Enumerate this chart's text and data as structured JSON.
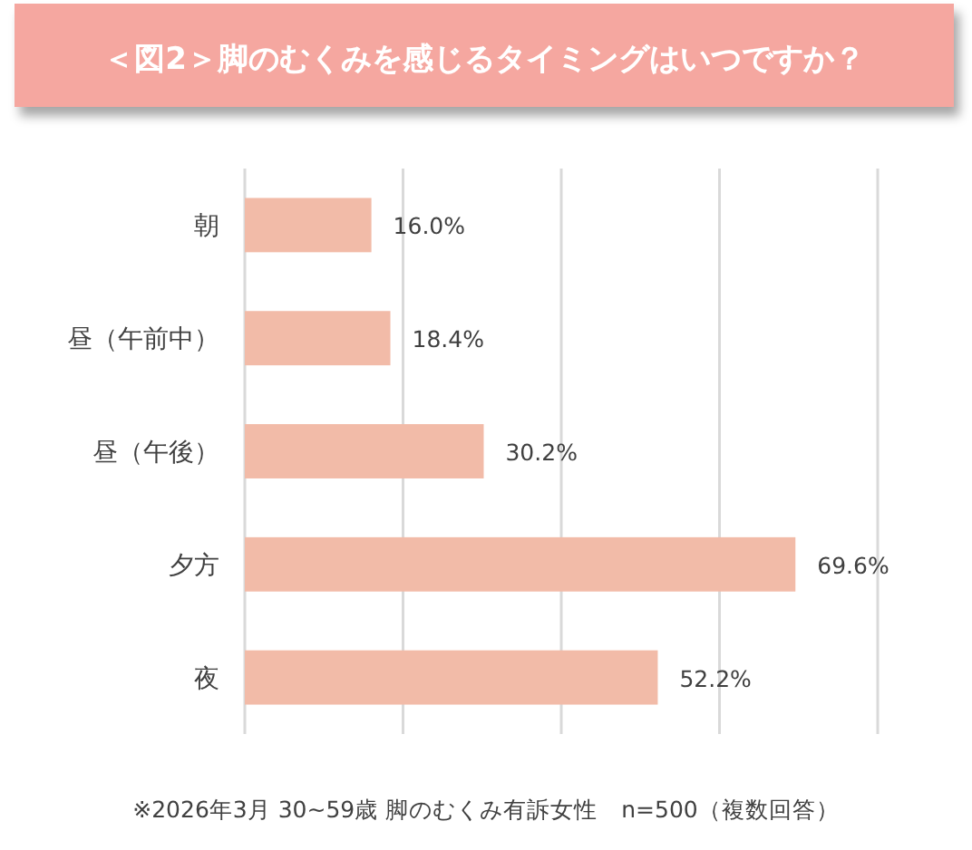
{
  "chart_data": {
    "type": "bar",
    "orientation": "horizontal",
    "title": "＜図2＞脚のむくみを感じるタイミングはいつですか？",
    "categories": [
      "朝",
      "昼（午前中）",
      "昼（午後）",
      "夕方",
      "夜"
    ],
    "values": [
      16.0,
      18.4,
      30.2,
      69.6,
      52.2
    ],
    "value_labels": [
      "16.0%",
      "18.4%",
      "30.2%",
      "69.6%",
      "52.2%"
    ],
    "color": "#f2bba8",
    "xlim": [
      0,
      80
    ],
    "xticks": [
      {
        "value": 0,
        "label": null
      },
      {
        "value": 20,
        "label": null
      },
      {
        "value": 40,
        "label": null
      },
      {
        "value": 60,
        "label": null
      },
      {
        "value": 80,
        "label": null
      }
    ],
    "tick_labels": "y",
    "grid": "x",
    "annotations": [
      "※2026年3月 30~59歳 脚のむくみ有訴女性　n=500（複数回答）"
    ]
  }
}
